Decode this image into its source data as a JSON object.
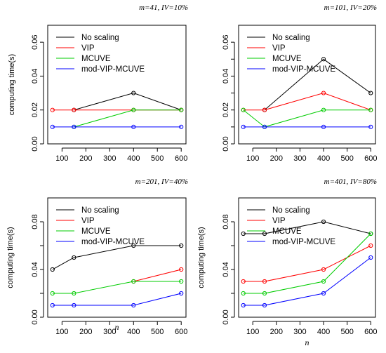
{
  "chart_data": [
    {
      "type": "line",
      "title": "m=41, IV=10%",
      "xlabel": "",
      "ylabel": "computing time(s)",
      "x": [
        60,
        150,
        400,
        600
      ],
      "xticks": [
        100,
        200,
        300,
        400,
        500,
        600
      ],
      "yticks": [
        0.0,
        0.02,
        0.04,
        0.06
      ],
      "ytick_labels": [
        "0.00",
        "0.02",
        "0.04",
        "0.06"
      ],
      "xlim": [
        40,
        620
      ],
      "ylim": [
        0,
        0.07
      ],
      "legend_position": "top-left",
      "series": [
        {
          "name": "No scaling",
          "color": "#000000",
          "values": [
            null,
            0.02,
            0.03,
            0.02
          ]
        },
        {
          "name": "VIP",
          "color": "#ff0000",
          "values": [
            0.02,
            0.02,
            0.02,
            0.02
          ]
        },
        {
          "name": "MCUVE",
          "color": "#00cc00",
          "values": [
            null,
            0.01,
            0.02,
            0.02
          ]
        },
        {
          "name": "mod-VIP-MCUVE",
          "color": "#0000ff",
          "values": [
            0.01,
            0.01,
            0.01,
            0.01
          ]
        }
      ]
    },
    {
      "type": "line",
      "title": "m=101, IV=20%",
      "xlabel": "",
      "ylabel": "",
      "x": [
        60,
        150,
        400,
        600
      ],
      "xticks": [
        100,
        200,
        300,
        400,
        500,
        600
      ],
      "yticks": [
        0.0,
        0.01,
        0.02,
        0.03,
        0.04,
        0.05,
        0.06
      ],
      "ytick_labels": [
        "0.00",
        "",
        "0.02",
        "",
        "0.04",
        "",
        "0.06"
      ],
      "xlim": [
        40,
        620
      ],
      "ylim": [
        0,
        0.07
      ],
      "legend_position": "top-left",
      "series": [
        {
          "name": "No scaling",
          "color": "#000000",
          "values": [
            null,
            0.02,
            0.05,
            0.03
          ]
        },
        {
          "name": "VIP",
          "color": "#ff0000",
          "values": [
            0.02,
            0.02,
            0.03,
            0.02
          ]
        },
        {
          "name": "MCUVE",
          "color": "#00cc00",
          "values": [
            0.02,
            0.01,
            0.02,
            0.02
          ]
        },
        {
          "name": "mod-VIP-MCUVE",
          "color": "#0000ff",
          "values": [
            0.01,
            0.01,
            0.01,
            0.01
          ]
        }
      ]
    },
    {
      "type": "line",
      "title": "m=201, IV=40%",
      "xlabel": "n",
      "ylabel": "computing time(s)",
      "x": [
        60,
        150,
        400,
        600
      ],
      "xticks": [
        100,
        200,
        300,
        400,
        500,
        600
      ],
      "yticks": [
        0.0,
        0.02,
        0.04,
        0.06,
        0.08
      ],
      "ytick_labels": [
        "0.00",
        "",
        "0.04",
        "",
        "0.08"
      ],
      "xlim": [
        40,
        620
      ],
      "ylim": [
        0,
        0.1
      ],
      "legend_position": "top-left",
      "series": [
        {
          "name": "No scaling",
          "color": "#000000",
          "values": [
            0.04,
            0.05,
            0.06,
            0.06
          ]
        },
        {
          "name": "VIP",
          "color": "#ff0000",
          "values": [
            null,
            null,
            0.03,
            0.04
          ]
        },
        {
          "name": "MCUVE",
          "color": "#00cc00",
          "values": [
            0.02,
            0.02,
            0.03,
            0.03
          ]
        },
        {
          "name": "mod-VIP-MCUVE",
          "color": "#0000ff",
          "values": [
            0.01,
            0.01,
            0.01,
            0.02
          ]
        }
      ]
    },
    {
      "type": "line",
      "title": "m=401, IV=80%",
      "xlabel": "n",
      "ylabel": "computing time(s)",
      "x": [
        60,
        150,
        400,
        600
      ],
      "xticks": [
        100,
        200,
        300,
        400,
        500,
        600
      ],
      "yticks": [
        0.0,
        0.02,
        0.04,
        0.06,
        0.08
      ],
      "ytick_labels": [
        "0.00",
        "",
        "0.04",
        "",
        "0.08"
      ],
      "xlim": [
        40,
        620
      ],
      "ylim": [
        0,
        0.1
      ],
      "legend_position": "top-left",
      "series": [
        {
          "name": "No scaling",
          "color": "#000000",
          "values": [
            0.07,
            0.07,
            0.08,
            0.07
          ]
        },
        {
          "name": "VIP",
          "color": "#ff0000",
          "values": [
            0.03,
            0.03,
            0.04,
            0.06
          ]
        },
        {
          "name": "MCUVE",
          "color": "#00cc00",
          "values": [
            0.02,
            0.02,
            0.03,
            0.07
          ]
        },
        {
          "name": "mod-VIP-MCUVE",
          "color": "#0000ff",
          "values": [
            0.01,
            0.01,
            0.02,
            0.05
          ]
        }
      ]
    }
  ]
}
